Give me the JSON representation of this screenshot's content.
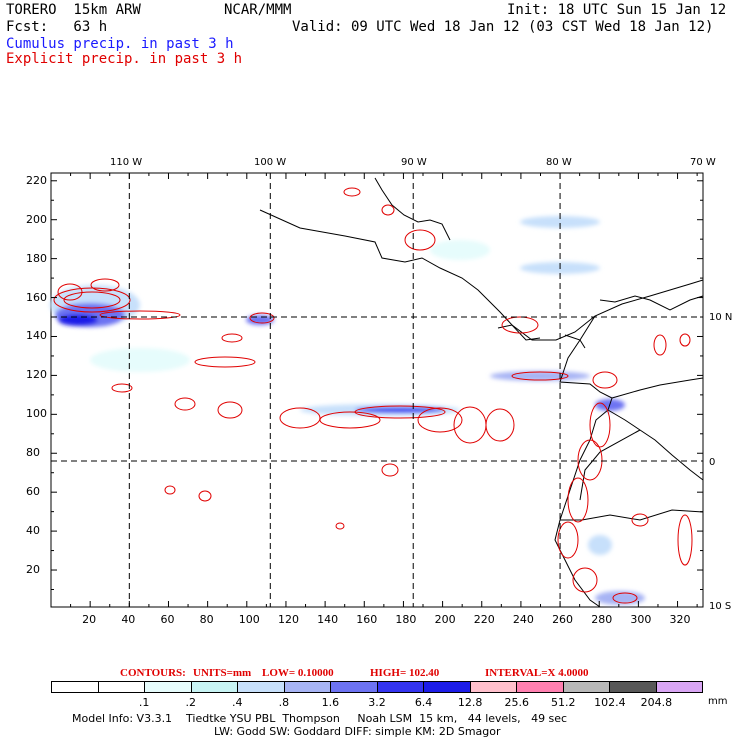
{
  "header": {
    "model": "TORERO  15km ARW",
    "org": "NCAR/MMM",
    "init": "Init: 18 UTC Sun 15 Jan 12",
    "fcst": "Fcst:   63 h",
    "valid": "Valid: 09 UTC Wed 18 Jan 12 (03 CST Wed 18 Jan 12)",
    "cumulus": "Cumulus precip. in past 3 h",
    "explicit": "Explicit precip. in past 3 h"
  },
  "lon_labels": [
    "110 W",
    "100 W",
    "90 W",
    "80 W",
    "70 W"
  ],
  "lat_labels": [
    "10 N",
    "0",
    "10 S"
  ],
  "y_ticks": [
    "220",
    "200",
    "180",
    "160",
    "140",
    "120",
    "100",
    "80",
    "60",
    "40",
    "20"
  ],
  "x_ticks": [
    "20",
    "40",
    "60",
    "80",
    "100",
    "120",
    "140",
    "160",
    "180",
    "200",
    "220",
    "240",
    "260",
    "280",
    "300",
    "320"
  ],
  "contours": {
    "label": "CONTOURS:",
    "units": "UNITS=mm",
    "low": "LOW= 0.10000",
    "high": "HIGH=  102.40",
    "interval": "INTERVAL=X  4.0000"
  },
  "scale": {
    "labels": [
      ".1",
      ".2",
      ".4",
      ".8",
      "1.6",
      "3.2",
      "6.4",
      "12.8",
      "25.6",
      "51.2",
      "102.4",
      "204.8"
    ],
    "unit": "mm",
    "colors": [
      "#ffffff",
      "#ffffff",
      "#e6fcfc",
      "#c8f4f4",
      "#c7e0fb",
      "#a7b4f4",
      "#6d73f2",
      "#3434f0",
      "#1c1ce8",
      "#ffc0cc",
      "#ff80b0",
      "#b8b8b8",
      "#585858",
      "#d9a6f4"
    ]
  },
  "model_info": {
    "line1": "Model Info: V3.3.1    Tiedtke YSU PBL  Thompson     Noah LSM  15 km,   44 levels,   49 sec",
    "line2": "LW: Godd SW: Goddard DIFF: simple KM: 2D Smagor"
  },
  "chart_data": {
    "type": "heatmap",
    "xlim": [
      0,
      333
    ],
    "ylim": [
      1,
      224
    ],
    "grid_lines_x": [
      40,
      112,
      185,
      260
    ],
    "grid_lines_y": [
      150,
      76
    ],
    "cumulus_areas": [
      {
        "x": 30,
        "y": 148,
        "w": 40,
        "h": 10
      },
      {
        "x": 100,
        "y": 149,
        "w": 12,
        "h": 3
      },
      {
        "x": 145,
        "y": 104,
        "w": 50,
        "h": 3
      },
      {
        "x": 238,
        "y": 122,
        "w": 30,
        "h": 3
      },
      {
        "x": 253,
        "y": 181,
        "w": 28,
        "h": 6
      },
      {
        "x": 282,
        "y": 8,
        "w": 20,
        "h": 4
      }
    ],
    "explicit_areas": [
      {
        "x": 30,
        "y": 157,
        "w": 25,
        "h": 6
      },
      {
        "x": 95,
        "y": 127,
        "w": 15,
        "h": 3
      },
      {
        "x": 130,
        "y": 102,
        "w": 45,
        "h": 4
      },
      {
        "x": 175,
        "y": 100,
        "w": 50,
        "h": 4
      },
      {
        "x": 240,
        "y": 121,
        "w": 25,
        "h": 3
      },
      {
        "x": 272,
        "y": 70,
        "w": 20,
        "h": 50
      },
      {
        "x": 262,
        "y": 30,
        "w": 12,
        "h": 35
      },
      {
        "x": 172,
        "y": 74,
        "w": 8,
        "h": 6
      },
      {
        "x": 300,
        "y": 140,
        "w": 8,
        "h": 6
      }
    ]
  }
}
